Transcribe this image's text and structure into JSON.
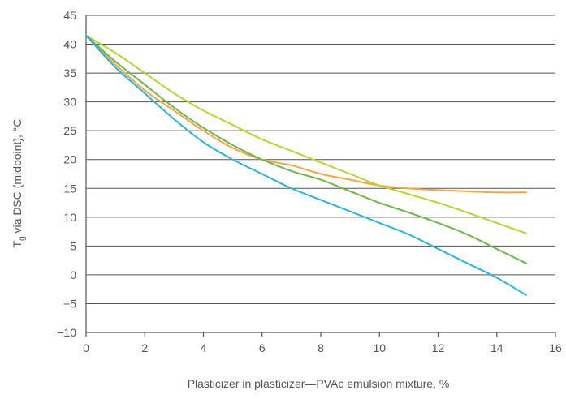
{
  "chart_data": {
    "type": "line",
    "title": "",
    "xlabel": "Plasticizer in plasticizer—PVAc emulsion mixture, %",
    "ylabel_main": "T",
    "ylabel_sub": "g",
    "ylabel_rest": " via DSC (midpoint), °C",
    "xlim": [
      0,
      16
    ],
    "ylim": [
      -10,
      45
    ],
    "xticks": [
      0,
      2,
      4,
      6,
      8,
      10,
      12,
      14,
      16
    ],
    "yticks": [
      -10,
      -5,
      0,
      5,
      10,
      15,
      20,
      25,
      30,
      35,
      40,
      45
    ],
    "xtick_labels": [
      "0",
      "2",
      "4",
      "6",
      "8",
      "10",
      "12",
      "14",
      "16"
    ],
    "ytick_labels": [
      "−10",
      "−5",
      "0",
      "5",
      "10",
      "15",
      "20",
      "25",
      "30",
      "35",
      "40",
      "45"
    ],
    "grid": true,
    "legend": "none",
    "series": [
      {
        "color": "#f2a541",
        "points": [
          [
            0,
            41.5
          ],
          [
            1,
            36.5
          ],
          [
            2,
            32
          ],
          [
            3,
            28.5
          ],
          [
            4,
            25
          ],
          [
            5,
            22
          ],
          [
            6,
            20
          ],
          [
            7,
            19
          ],
          [
            8,
            17.5
          ],
          [
            9,
            16.5
          ],
          [
            10,
            15.5
          ],
          [
            11,
            15
          ],
          [
            12,
            14.7
          ],
          [
            13,
            14.5
          ],
          [
            14,
            14.3
          ],
          [
            15,
            14.3
          ]
        ]
      },
      {
        "color": "#b6d433",
        "points": [
          [
            0,
            41.5
          ],
          [
            1,
            38.5
          ],
          [
            2,
            35
          ],
          [
            3,
            31.5
          ],
          [
            4,
            28.5
          ],
          [
            5,
            26
          ],
          [
            6,
            23.5
          ],
          [
            7,
            21.5
          ],
          [
            8,
            19.5
          ],
          [
            9,
            17.5
          ],
          [
            10,
            15.5
          ],
          [
            11,
            14
          ],
          [
            12,
            12.5
          ],
          [
            13,
            10.8
          ],
          [
            14,
            9
          ],
          [
            15,
            7.2
          ]
        ]
      },
      {
        "color": "#6fb54a",
        "points": [
          [
            0,
            41.5
          ],
          [
            1,
            37
          ],
          [
            2,
            33
          ],
          [
            3,
            29
          ],
          [
            4,
            25.5
          ],
          [
            5,
            22.5
          ],
          [
            6,
            20
          ],
          [
            7,
            18
          ],
          [
            8,
            16.5
          ],
          [
            9,
            14.5
          ],
          [
            10,
            12.5
          ],
          [
            11,
            10.8
          ],
          [
            12,
            9
          ],
          [
            13,
            7
          ],
          [
            14,
            4.5
          ],
          [
            15,
            2
          ]
        ]
      },
      {
        "color": "#2bb5d8",
        "points": [
          [
            0,
            41.5
          ],
          [
            1,
            36
          ],
          [
            2,
            31.5
          ],
          [
            3,
            27
          ],
          [
            4,
            23
          ],
          [
            5,
            20
          ],
          [
            6,
            17.5
          ],
          [
            7,
            15
          ],
          [
            8,
            13
          ],
          [
            9,
            11
          ],
          [
            10,
            9
          ],
          [
            11,
            7
          ],
          [
            12,
            4.5
          ],
          [
            13,
            2
          ],
          [
            14,
            -0.5
          ],
          [
            15,
            -3.5
          ]
        ]
      }
    ]
  }
}
